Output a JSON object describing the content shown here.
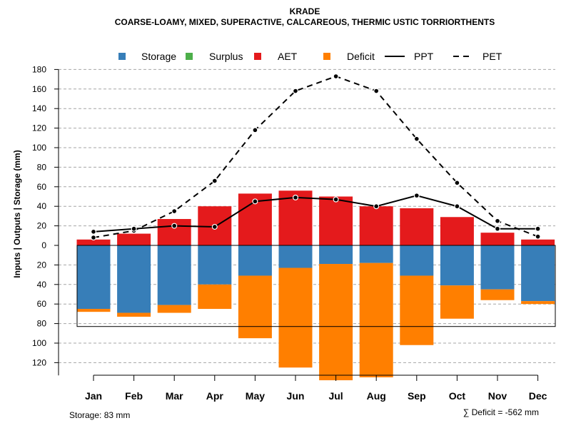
{
  "chart_data": {
    "type": "bar",
    "title": "KRADE",
    "subtitle": "COARSE-LOAMY, MIXED, SUPERACTIVE, CALCAREOUS, THERMIC USTIC TORRIORTHENTS",
    "ylabel": "Inputs | Outputs | Storage     (mm)",
    "categories": [
      "Jan",
      "Feb",
      "Mar",
      "Apr",
      "May",
      "Jun",
      "Jul",
      "Aug",
      "Sep",
      "Oct",
      "Nov",
      "Dec"
    ],
    "yticks_up": [
      0,
      20,
      40,
      60,
      80,
      100,
      120,
      140,
      160,
      180
    ],
    "yticks_down": [
      20,
      40,
      60,
      80,
      100,
      120
    ],
    "ylim": [
      -140,
      180
    ],
    "grid": true,
    "legend": {
      "position": "top",
      "items": [
        {
          "label": "Storage",
          "kind": "box",
          "color": "#377EB8"
        },
        {
          "label": "Surplus",
          "kind": "box",
          "color": "#4DAF4A"
        },
        {
          "label": "AET",
          "kind": "box",
          "color": "#E41A1C"
        },
        {
          "label": "Deficit",
          "kind": "box",
          "color": "#FF7F00"
        },
        {
          "label": "PPT",
          "kind": "solid-line",
          "color": "#000000"
        },
        {
          "label": "PET",
          "kind": "dashed-line",
          "color": "#000000"
        }
      ]
    },
    "series": [
      {
        "name": "AET",
        "color": "#E41A1C",
        "values": [
          6,
          12,
          27,
          40,
          53,
          56,
          50,
          40,
          38,
          29,
          13,
          6
        ]
      },
      {
        "name": "Storage",
        "color": "#377EB8",
        "values": [
          65,
          69,
          61,
          40,
          31,
          23,
          19,
          18,
          31,
          41,
          45,
          57
        ]
      },
      {
        "name": "Deficit",
        "color": "#FF7F00",
        "values": [
          3,
          4,
          8,
          25,
          64,
          102,
          119,
          117,
          71,
          34,
          11,
          3
        ]
      },
      {
        "name": "Surplus",
        "color": "#4DAF4A",
        "values": [
          0,
          0,
          0,
          0,
          0,
          0,
          0,
          0,
          0,
          0,
          0,
          0
        ]
      },
      {
        "name": "PPT",
        "color": "#000000",
        "values": [
          14,
          17,
          20,
          19,
          45,
          49,
          47,
          40,
          51,
          40,
          17,
          17
        ]
      },
      {
        "name": "PET",
        "color": "#000000",
        "values": [
          8,
          15,
          35,
          66,
          118,
          158,
          173,
          158,
          109,
          64,
          25,
          9
        ]
      }
    ],
    "storage_capacity_mm": 83,
    "footnotes": {
      "storage": "Storage: 83 mm",
      "deficit": "∑ Deficit = -562 mm"
    }
  }
}
